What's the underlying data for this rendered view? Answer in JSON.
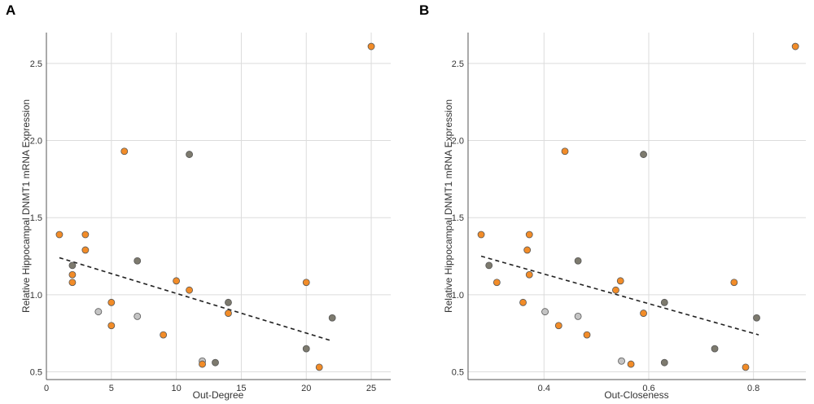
{
  "colors": {
    "orange": "#F28C28",
    "dark": "#7D7A6E",
    "light": "#C4C4C4"
  },
  "chart_data": [
    {
      "type": "scatter",
      "panel": "A",
      "xlabel": "Out-Degree",
      "ylabel": "Relative Hippocampal DNMT1 mRNA Expression",
      "xlim": [
        0,
        26.5
      ],
      "ylim": [
        0.45,
        2.7
      ],
      "xticks": [
        0,
        5,
        10,
        15,
        20,
        25
      ],
      "yticks": [
        0.5,
        1.0,
        1.5,
        2.0,
        2.5
      ],
      "ytick_labels": [
        "0.5",
        "1.0",
        "1.5",
        "2.0",
        "2.5"
      ],
      "trendline": {
        "x": [
          1,
          22
        ],
        "y": [
          1.24,
          0.7
        ]
      },
      "points": [
        {
          "x": 1,
          "y": 1.39,
          "group": "orange"
        },
        {
          "x": 2,
          "y": 1.19,
          "group": "dark"
        },
        {
          "x": 2,
          "y": 1.13,
          "group": "orange"
        },
        {
          "x": 2,
          "y": 1.08,
          "group": "orange"
        },
        {
          "x": 3,
          "y": 1.39,
          "group": "orange"
        },
        {
          "x": 3,
          "y": 1.29,
          "group": "orange"
        },
        {
          "x": 4,
          "y": 0.89,
          "group": "light"
        },
        {
          "x": 5,
          "y": 0.95,
          "group": "orange"
        },
        {
          "x": 5,
          "y": 0.8,
          "group": "orange"
        },
        {
          "x": 6,
          "y": 1.93,
          "group": "orange"
        },
        {
          "x": 7,
          "y": 1.22,
          "group": "dark"
        },
        {
          "x": 7,
          "y": 0.86,
          "group": "light"
        },
        {
          "x": 9,
          "y": 0.74,
          "group": "orange"
        },
        {
          "x": 10,
          "y": 1.09,
          "group": "orange"
        },
        {
          "x": 11,
          "y": 1.91,
          "group": "dark"
        },
        {
          "x": 11,
          "y": 1.03,
          "group": "orange"
        },
        {
          "x": 12,
          "y": 0.57,
          "group": "light"
        },
        {
          "x": 12,
          "y": 0.55,
          "group": "orange"
        },
        {
          "x": 13,
          "y": 0.56,
          "group": "dark"
        },
        {
          "x": 14,
          "y": 0.95,
          "group": "dark"
        },
        {
          "x": 14,
          "y": 0.88,
          "group": "orange"
        },
        {
          "x": 20,
          "y": 1.08,
          "group": "orange"
        },
        {
          "x": 20,
          "y": 0.65,
          "group": "dark"
        },
        {
          "x": 21,
          "y": 0.53,
          "group": "orange"
        },
        {
          "x": 22,
          "y": 0.85,
          "group": "dark"
        },
        {
          "x": 25,
          "y": 2.61,
          "group": "orange"
        }
      ]
    },
    {
      "type": "scatter",
      "panel": "B",
      "xlabel": "Out-Closeness",
      "ylabel": "Relative Hippocampal DNMT1 mRNA Expression",
      "xlim": [
        0.255,
        0.9
      ],
      "ylim": [
        0.45,
        2.7
      ],
      "xticks": [
        0.4,
        0.6,
        0.8
      ],
      "yticks": [
        0.5,
        1.0,
        1.5,
        2.0,
        2.5
      ],
      "ytick_labels": [
        "0.5",
        "1.0",
        "1.5",
        "2.0",
        "2.5"
      ],
      "trendline": {
        "x": [
          0.28,
          0.81
        ],
        "y": [
          1.25,
          0.74
        ]
      },
      "points": [
        {
          "x": 0.28,
          "y": 1.39,
          "group": "orange"
        },
        {
          "x": 0.295,
          "y": 1.19,
          "group": "dark"
        },
        {
          "x": 0.31,
          "y": 1.08,
          "group": "orange"
        },
        {
          "x": 0.36,
          "y": 0.95,
          "group": "orange"
        },
        {
          "x": 0.368,
          "y": 1.29,
          "group": "orange"
        },
        {
          "x": 0.372,
          "y": 1.39,
          "group": "orange"
        },
        {
          "x": 0.372,
          "y": 1.13,
          "group": "orange"
        },
        {
          "x": 0.402,
          "y": 0.89,
          "group": "light"
        },
        {
          "x": 0.428,
          "y": 0.8,
          "group": "orange"
        },
        {
          "x": 0.44,
          "y": 1.93,
          "group": "orange"
        },
        {
          "x": 0.465,
          "y": 1.22,
          "group": "dark"
        },
        {
          "x": 0.465,
          "y": 0.86,
          "group": "light"
        },
        {
          "x": 0.482,
          "y": 0.74,
          "group": "orange"
        },
        {
          "x": 0.537,
          "y": 1.03,
          "group": "orange"
        },
        {
          "x": 0.546,
          "y": 1.09,
          "group": "orange"
        },
        {
          "x": 0.548,
          "y": 0.57,
          "group": "light"
        },
        {
          "x": 0.566,
          "y": 0.55,
          "group": "orange"
        },
        {
          "x": 0.59,
          "y": 1.91,
          "group": "dark"
        },
        {
          "x": 0.59,
          "y": 0.88,
          "group": "orange"
        },
        {
          "x": 0.63,
          "y": 0.95,
          "group": "dark"
        },
        {
          "x": 0.63,
          "y": 0.56,
          "group": "dark"
        },
        {
          "x": 0.726,
          "y": 0.65,
          "group": "dark"
        },
        {
          "x": 0.763,
          "y": 1.08,
          "group": "orange"
        },
        {
          "x": 0.785,
          "y": 0.53,
          "group": "orange"
        },
        {
          "x": 0.806,
          "y": 0.85,
          "group": "dark"
        },
        {
          "x": 0.88,
          "y": 2.61,
          "group": "orange"
        }
      ]
    }
  ]
}
